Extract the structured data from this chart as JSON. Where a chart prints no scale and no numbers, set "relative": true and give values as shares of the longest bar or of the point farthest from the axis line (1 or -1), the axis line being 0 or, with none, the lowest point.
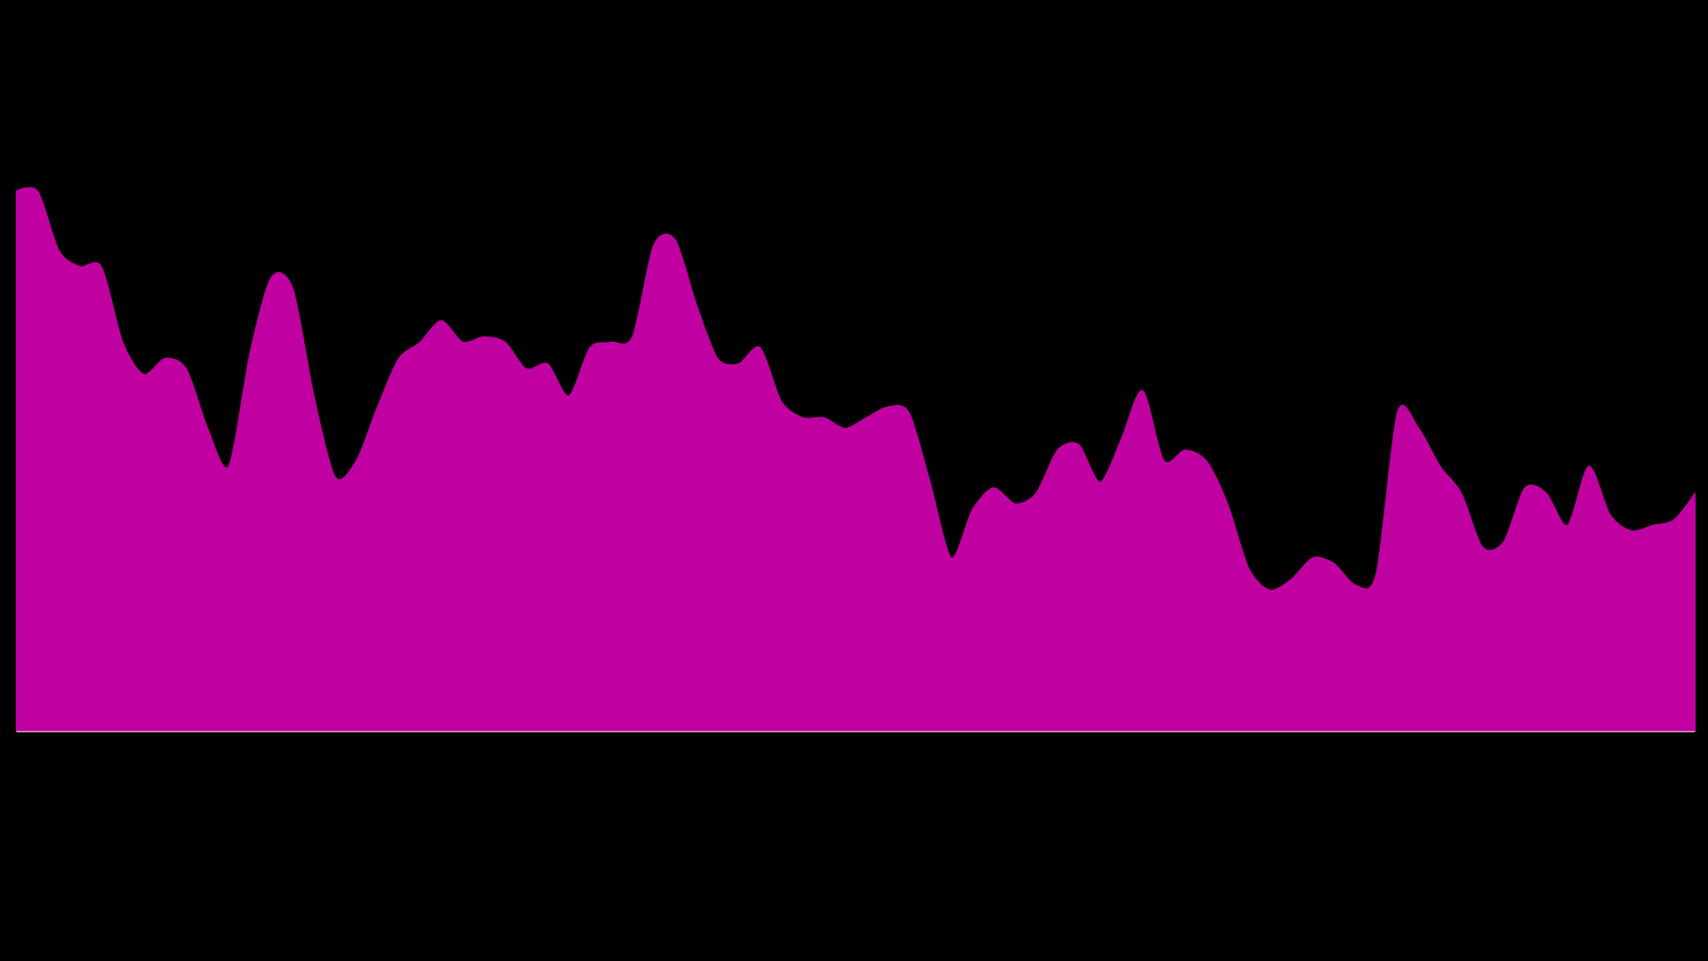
{
  "chart_data": {
    "type": "area",
    "relative": true,
    "categories": [
      null,
      null,
      null,
      null,
      null,
      null,
      null,
      null,
      null,
      null,
      null,
      null,
      null,
      null,
      null,
      null,
      null,
      null,
      null,
      null,
      null,
      null,
      null,
      null,
      null,
      null,
      null,
      null,
      null,
      null,
      null,
      null,
      null,
      null,
      null,
      null,
      null,
      null,
      null,
      null,
      null,
      null,
      null,
      null,
      null,
      null,
      null,
      null,
      null,
      null,
      null,
      null,
      null,
      null,
      null,
      null,
      null,
      null,
      null,
      null,
      null,
      null,
      null,
      null,
      null,
      null,
      null,
      null,
      null,
      null,
      null,
      null,
      null,
      null,
      null,
      null,
      null,
      null,
      null,
      null
    ],
    "values": [
      1.0,
      1.0,
      0.89,
      0.86,
      0.86,
      0.72,
      0.66,
      0.69,
      0.67,
      0.56,
      0.49,
      0.7,
      0.84,
      0.82,
      0.62,
      0.47,
      0.5,
      0.6,
      0.69,
      0.72,
      0.76,
      0.72,
      0.73,
      0.72,
      0.67,
      0.68,
      0.62,
      0.71,
      0.72,
      0.73,
      0.9,
      0.91,
      0.79,
      0.69,
      0.68,
      0.71,
      0.61,
      0.58,
      0.58,
      0.56,
      0.58,
      0.6,
      0.59,
      0.46,
      0.32,
      0.41,
      0.45,
      0.42,
      0.44,
      0.52,
      0.53,
      0.46,
      0.54,
      0.63,
      0.5,
      0.52,
      0.5,
      0.42,
      0.3,
      0.26,
      0.28,
      0.32,
      0.31,
      0.27,
      0.29,
      0.59,
      0.56,
      0.49,
      0.44,
      0.34,
      0.35,
      0.45,
      0.44,
      0.38,
      0.49,
      0.4,
      0.37,
      0.38,
      0.39,
      0.44
    ],
    "color": "#c000a0"
  }
}
